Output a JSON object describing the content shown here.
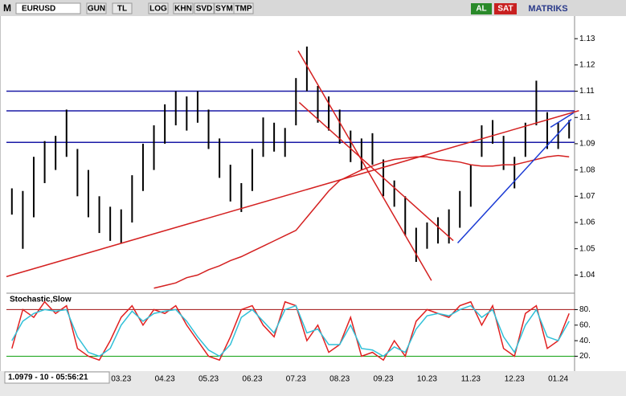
{
  "toolbar": {
    "logo": "M",
    "symbol": "EURUSD",
    "buttons": [
      "GUN",
      "TL",
      "LOG",
      "KHN",
      "SVD",
      "SYM",
      "TMP"
    ],
    "buy": "AL",
    "sell": "SAT",
    "brand": "MATRIKS"
  },
  "status": "1.0979 - 10 - 05:56:21",
  "chart_data": [
    {
      "type": "range",
      "color": "#000000",
      "categories": [
        null,
        null,
        null,
        null,
        null,
        null,
        null,
        null,
        null,
        null,
        "03.23",
        null,
        null,
        null,
        "04.23",
        null,
        null,
        null,
        "05.23",
        null,
        null,
        null,
        "06.23",
        null,
        null,
        null,
        "07.23",
        null,
        null,
        null,
        "08.23",
        null,
        null,
        null,
        "09.23",
        null,
        null,
        null,
        "10.23",
        null,
        null,
        null,
        "11.23",
        null,
        null,
        null,
        "12.23",
        null,
        null,
        null,
        "01.24",
        null
      ],
      "high": [
        1.073,
        1.072,
        1.085,
        1.091,
        1.093,
        1.103,
        1.088,
        1.08,
        1.07,
        1.066,
        1.065,
        1.078,
        1.09,
        1.097,
        1.105,
        1.11,
        1.108,
        1.11,
        1.103,
        1.092,
        1.082,
        1.075,
        1.088,
        1.1,
        1.098,
        1.096,
        1.115,
        1.127,
        1.112,
        1.108,
        1.103,
        1.095,
        1.092,
        1.094,
        1.084,
        1.076,
        1.07,
        1.058,
        1.06,
        1.062,
        1.065,
        1.072,
        1.082,
        1.097,
        1.099,
        1.093,
        1.085,
        1.098,
        1.114,
        1.102,
        1.098,
        1.099
      ],
      "low": [
        1.063,
        1.05,
        1.062,
        1.075,
        1.08,
        1.085,
        1.07,
        1.062,
        1.056,
        1.053,
        1.052,
        1.06,
        1.072,
        1.08,
        1.09,
        1.097,
        1.095,
        1.098,
        1.088,
        1.077,
        1.068,
        1.064,
        1.072,
        1.085,
        1.087,
        1.085,
        1.097,
        1.11,
        1.098,
        1.095,
        1.09,
        1.083,
        1.08,
        1.082,
        1.07,
        1.066,
        1.055,
        1.045,
        1.05,
        1.052,
        1.052,
        1.058,
        1.066,
        1.085,
        1.09,
        1.08,
        1.073,
        1.085,
        1.097,
        1.088,
        1.088,
        1.092
      ],
      "ma": {
        "color": "#d42020",
        "values": [
          null,
          null,
          null,
          null,
          null,
          null,
          null,
          null,
          null,
          null,
          null,
          null,
          null,
          1.035,
          1.036,
          1.037,
          1.039,
          1.04,
          1.042,
          1.0435,
          1.0455,
          1.047,
          1.049,
          1.051,
          1.053,
          1.055,
          1.057,
          1.062,
          1.067,
          1.072,
          1.076,
          1.078,
          1.08,
          1.0815,
          1.083,
          1.084,
          1.0845,
          1.085,
          1.085,
          1.084,
          1.0835,
          1.083,
          1.082,
          1.0815,
          1.0815,
          1.082,
          1.082,
          1.083,
          1.084,
          1.085,
          1.0855,
          1.085
        ]
      },
      "hlines": [
        {
          "value": 1.11,
          "color": "#1a1aa6"
        },
        {
          "value": 1.1025,
          "color": "#1a1aa6"
        },
        {
          "value": 1.0905,
          "color": "#1a1aa6"
        }
      ],
      "trendlines": [
        {
          "x": [
            -0.5,
            51.9
          ],
          "y": [
            1.0394,
            1.1026
          ],
          "color": "#d42020"
        },
        {
          "x": [
            26.2,
            38.4
          ],
          "y": [
            1.1254,
            1.0379
          ],
          "color": "#d42020"
        },
        {
          "x": [
            26.3,
            40.4
          ],
          "y": [
            1.1057,
            1.0531
          ],
          "color": "#d42020"
        },
        {
          "x": [
            40.8,
            51.2
          ],
          "y": [
            1.0522,
            1.0993
          ],
          "color": "#1a3ad4"
        },
        {
          "x": [
            49.3,
            51.4
          ],
          "y": [
            1.0963,
            1.1017
          ],
          "color": "#1a3ad4"
        }
      ],
      "ylim": [
        1.034,
        1.138
      ],
      "yticks": [
        1.04,
        1.05,
        1.06,
        1.07,
        1.08,
        1.09,
        1.1,
        1.11,
        1.12,
        1.13
      ]
    },
    {
      "type": "line",
      "title": "Stochastic,Slow",
      "series": [
        {
          "color": "#e02020",
          "values": [
            30,
            80,
            70,
            90,
            75,
            85,
            30,
            20,
            15,
            40,
            70,
            85,
            60,
            80,
            75,
            85,
            60,
            40,
            20,
            15,
            45,
            80,
            85,
            60,
            45,
            90,
            85,
            40,
            60,
            25,
            35,
            70,
            20,
            25,
            15,
            40,
            20,
            65,
            80,
            75,
            70,
            85,
            90,
            60,
            85,
            30,
            20,
            75,
            85,
            30,
            40,
            75
          ]
        },
        {
          "color": "#30c0d8",
          "values": [
            40,
            65,
            75,
            80,
            78,
            80,
            45,
            25,
            20,
            30,
            60,
            78,
            65,
            75,
            78,
            80,
            65,
            45,
            28,
            20,
            35,
            70,
            80,
            65,
            50,
            80,
            85,
            50,
            55,
            35,
            35,
            60,
            30,
            28,
            20,
            32,
            25,
            55,
            72,
            75,
            72,
            80,
            85,
            70,
            80,
            45,
            25,
            60,
            80,
            45,
            40,
            65
          ]
        }
      ],
      "hlines": [
        {
          "value": 80,
          "color": "#a01010"
        },
        {
          "value": 20,
          "color": "#10a010"
        }
      ],
      "ylim": [
        5,
        98
      ],
      "yticks": [
        {
          "value": 20,
          "label": "20."
        },
        {
          "value": 40,
          "label": "40."
        },
        {
          "value": 60,
          "label": "60."
        },
        {
          "value": 80,
          "label": "80."
        }
      ]
    }
  ]
}
